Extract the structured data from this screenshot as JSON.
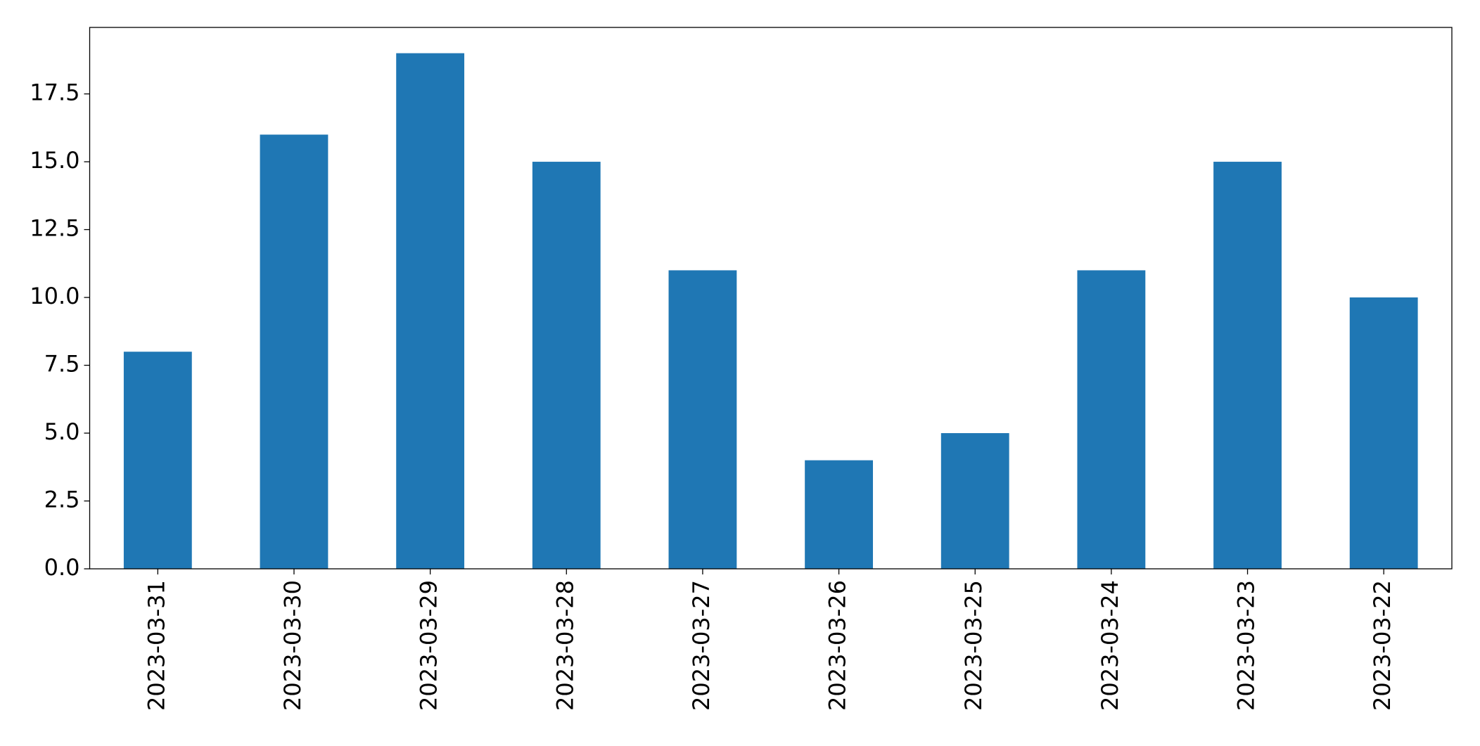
{
  "chart_data": {
    "type": "bar",
    "categories": [
      "2023-03-31",
      "2023-03-30",
      "2023-03-29",
      "2023-03-28",
      "2023-03-27",
      "2023-03-26",
      "2023-03-25",
      "2023-03-24",
      "2023-03-23",
      "2023-03-22"
    ],
    "values": [
      8,
      16,
      19,
      15,
      11,
      4,
      5,
      11,
      15,
      10
    ],
    "color": "#1f77b4",
    "ylim": [
      0,
      19.95
    ],
    "yticks": [
      {
        "value": 0,
        "label": "0.0"
      },
      2.5,
      {
        "value": 5,
        "label": "5.0"
      },
      7.5,
      {
        "value": 10,
        "label": "10.0"
      },
      12.5,
      {
        "value": 15,
        "label": "15.0"
      },
      17.5
    ],
    "grid": false
  }
}
